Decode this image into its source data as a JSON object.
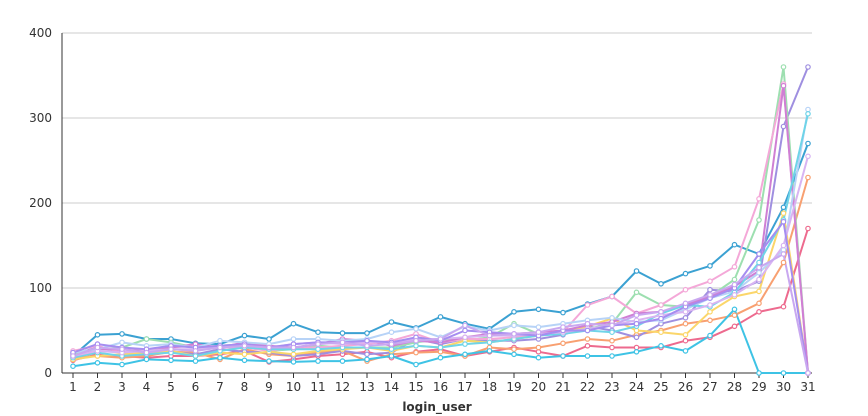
{
  "chart_data": {
    "type": "line",
    "xlabel": "login_user",
    "ylabel": "",
    "ylim": [
      0,
      400
    ],
    "yticks": [
      0,
      100,
      200,
      300,
      400
    ],
    "grid": true,
    "legend": "none",
    "categories": [
      "1",
      "2",
      "3",
      "4",
      "5",
      "6",
      "7",
      "8",
      "9",
      "10",
      "11",
      "12",
      "13",
      "14",
      "15",
      "16",
      "17",
      "18",
      "19",
      "20",
      "21",
      "22",
      "23",
      "24",
      "25",
      "26",
      "27",
      "28",
      "29",
      "30",
      "31"
    ],
    "series": [
      {
        "color": "#3ba1d2",
        "values": [
          20,
          45,
          46,
          40,
          40,
          35,
          34,
          44,
          40,
          58,
          48,
          47,
          47,
          60,
          53,
          66,
          58,
          52,
          72,
          75,
          71,
          81,
          90,
          120,
          105,
          117,
          126,
          151,
          140,
          195,
          270
        ]
      },
      {
        "color": "#ed6a8e",
        "values": [
          15,
          22,
          20,
          18,
          20,
          20,
          22,
          26,
          13,
          16,
          20,
          22,
          25,
          18,
          25,
          28,
          20,
          25,
          30,
          25,
          20,
          32,
          30,
          30,
          30,
          38,
          42,
          55,
          72,
          78,
          170
        ]
      },
      {
        "color": "#f8a071",
        "values": [
          18,
          20,
          18,
          20,
          25,
          24,
          16,
          28,
          22,
          20,
          24,
          26,
          14,
          22,
          24,
          25,
          20,
          30,
          28,
          30,
          35,
          40,
          38,
          45,
          50,
          58,
          62,
          68,
          82,
          130,
          230
        ]
      },
      {
        "color": "#9f8fe0",
        "values": [
          22,
          30,
          25,
          22,
          25,
          22,
          28,
          25,
          24,
          20,
          22,
          26,
          22,
          24,
          40,
          34,
          40,
          38,
          38,
          40,
          45,
          55,
          50,
          42,
          58,
          65,
          98,
          96,
          108,
          290,
          360
        ]
      },
      {
        "color": "#3ec3e5",
        "values": [
          8,
          12,
          10,
          16,
          15,
          14,
          18,
          15,
          14,
          13,
          14,
          14,
          16,
          20,
          10,
          18,
          22,
          26,
          22,
          18,
          20,
          20,
          20,
          25,
          32,
          26,
          44,
          75,
          0,
          0,
          0
        ]
      },
      {
        "color": "#9ddfb0",
        "values": [
          22,
          28,
          30,
          40,
          36,
          30,
          32,
          34,
          26,
          28,
          32,
          30,
          30,
          30,
          36,
          40,
          38,
          42,
          58,
          46,
          50,
          52,
          58,
          95,
          80,
          78,
          90,
          110,
          180,
          360,
          0
        ]
      },
      {
        "color": "#f4a8d8",
        "values": [
          26,
          32,
          24,
          28,
          30,
          32,
          30,
          30,
          26,
          30,
          30,
          32,
          34,
          38,
          46,
          36,
          40,
          40,
          42,
          45,
          48,
          80,
          90,
          70,
          80,
          98,
          108,
          125,
          205,
          340,
          0
        ]
      },
      {
        "color": "#fbd66a",
        "values": [
          16,
          20,
          22,
          24,
          26,
          20,
          24,
          22,
          25,
          22,
          26,
          28,
          30,
          26,
          32,
          30,
          38,
          36,
          40,
          44,
          48,
          55,
          64,
          50,
          48,
          45,
          72,
          90,
          96,
          188,
          0
        ]
      },
      {
        "color": "#cf7fd4",
        "values": [
          20,
          28,
          28,
          25,
          30,
          34,
          30,
          36,
          32,
          30,
          34,
          40,
          38,
          32,
          38,
          36,
          42,
          46,
          46,
          48,
          50,
          56,
          60,
          70,
          72,
          80,
          90,
          102,
          120,
          338,
          0
        ]
      },
      {
        "color": "#b7d3f7",
        "values": [
          24,
          28,
          36,
          32,
          34,
          30,
          38,
          36,
          34,
          40,
          40,
          38,
          40,
          48,
          52,
          42,
          55,
          50,
          56,
          54,
          58,
          62,
          65,
          60,
          62,
          75,
          88,
          96,
          118,
          145,
          310
        ]
      },
      {
        "color": "#6fd4e8",
        "values": [
          18,
          24,
          20,
          22,
          24,
          20,
          26,
          30,
          28,
          28,
          28,
          30,
          30,
          28,
          32,
          30,
          34,
          36,
          40,
          44,
          46,
          50,
          48,
          55,
          70,
          80,
          78,
          95,
          130,
          180,
          305
        ]
      },
      {
        "color": "#d8b4f2",
        "values": [
          20,
          26,
          24,
          26,
          28,
          28,
          30,
          32,
          30,
          34,
          36,
          34,
          36,
          36,
          40,
          40,
          42,
          44,
          44,
          46,
          48,
          52,
          56,
          62,
          68,
          72,
          80,
          92,
          110,
          150,
          255
        ]
      },
      {
        "color": "#a58df0",
        "values": [
          24,
          34,
          30,
          28,
          32,
          30,
          32,
          34,
          30,
          34,
          36,
          36,
          38,
          36,
          42,
          38,
          50,
          48,
          46,
          44,
          50,
          50,
          56,
          58,
          64,
          78,
          88,
          100,
          140,
          178,
          0
        ]
      },
      {
        "color": "#c9a8f0",
        "values": [
          20,
          30,
          28,
          24,
          28,
          26,
          30,
          32,
          30,
          30,
          34,
          36,
          32,
          34,
          38,
          40,
          56,
          44,
          46,
          48,
          54,
          58,
          56,
          68,
          72,
          82,
          92,
          104,
          124,
          140,
          0
        ]
      }
    ]
  }
}
